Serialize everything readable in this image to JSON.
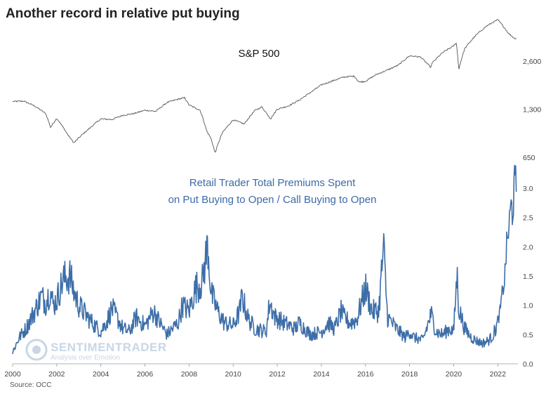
{
  "title": "Another record in relative put buying",
  "source": "Source: OCC",
  "watermark": {
    "brand": "SENTIMENTRADER",
    "tagline": "Analysis over Emotion"
  },
  "colors": {
    "sp500_line": "#555555",
    "ratio_line": "#3d6ea8",
    "watermark": "#c9d6e6"
  },
  "chart_data": [
    {
      "type": "line",
      "panel": "top",
      "label": "S&P 500",
      "y_scale": "log",
      "y_ticks": [
        {
          "value": 650,
          "label": "650"
        },
        {
          "value": 1300,
          "label": "1,300"
        },
        {
          "value": 2600,
          "label": "2,600"
        }
      ],
      "ylim": [
        600,
        5000
      ],
      "xlim": [
        2000.0,
        2022.85
      ],
      "x": [
        2000.0,
        2000.5,
        2001.0,
        2001.5,
        2001.72,
        2002.0,
        2002.5,
        2002.78,
        2003.0,
        2003.5,
        2004.0,
        2004.5,
        2005.0,
        2005.5,
        2006.0,
        2006.5,
        2007.0,
        2007.5,
        2007.8,
        2008.0,
        2008.5,
        2008.8,
        2009.0,
        2009.18,
        2009.5,
        2010.0,
        2010.5,
        2011.0,
        2011.3,
        2011.7,
        2012.0,
        2012.5,
        2013.0,
        2013.5,
        2014.0,
        2014.5,
        2015.0,
        2015.5,
        2015.7,
        2016.0,
        2016.5,
        2017.0,
        2017.5,
        2018.0,
        2018.5,
        2018.98,
        2019.0,
        2019.5,
        2020.0,
        2020.12,
        2020.23,
        2020.5,
        2021.0,
        2021.5,
        2022.0,
        2022.5,
        2022.75
      ],
      "y": [
        1450,
        1460,
        1360,
        1220,
        1000,
        1140,
        900,
        800,
        860,
        990,
        1130,
        1120,
        1190,
        1220,
        1280,
        1260,
        1430,
        1500,
        1530,
        1380,
        1280,
        950,
        850,
        690,
        920,
        1115,
        1050,
        1280,
        1340,
        1130,
        1300,
        1360,
        1480,
        1650,
        1840,
        1950,
        2060,
        2090,
        1920,
        1940,
        2140,
        2280,
        2450,
        2800,
        2750,
        2350,
        2500,
        2930,
        3230,
        3380,
        2300,
        3100,
        3750,
        4300,
        4700,
        3850,
        3600
      ]
    },
    {
      "type": "line",
      "panel": "bottom",
      "label": "Retail Trader Total Premiums Spent on Put Buying to Open / Call Buying to Open",
      "label_lines": [
        "Retail Trader Total Premiums Spent",
        "on Put Buying to Open / Call Buying to Open"
      ],
      "y_ticks": [
        {
          "value": 0.0,
          "label": "0.0"
        },
        {
          "value": 0.5,
          "label": "0.5"
        },
        {
          "value": 1.0,
          "label": "1.0"
        },
        {
          "value": 1.5,
          "label": "1.5"
        },
        {
          "value": 2.0,
          "label": "2.0"
        },
        {
          "value": 2.5,
          "label": "2.5"
        },
        {
          "value": 3.0,
          "label": "3.0"
        }
      ],
      "ylim": [
        0.0,
        3.0
      ],
      "xlim": [
        2000.0,
        2022.85
      ],
      "x": [
        2000.0,
        2000.3,
        2000.6,
        2001.0,
        2001.3,
        2001.5,
        2001.7,
        2001.85,
        2002.0,
        2002.3,
        2002.6,
        2002.8,
        2003.0,
        2003.5,
        2004.0,
        2004.3,
        2004.5,
        2005.0,
        2005.3,
        2005.6,
        2006.0,
        2006.4,
        2006.6,
        2007.0,
        2007.5,
        2007.7,
        2008.0,
        2008.3,
        2008.6,
        2008.85,
        2009.0,
        2009.3,
        2009.6,
        2010.0,
        2010.3,
        2010.4,
        2010.7,
        2011.0,
        2011.5,
        2011.65,
        2011.9,
        2012.3,
        2012.8,
        2013.0,
        2013.5,
        2014.0,
        2014.3,
        2014.6,
        2014.9,
        2015.0,
        2015.3,
        2015.6,
        2015.75,
        2016.0,
        2016.3,
        2016.6,
        2016.82,
        2017.0,
        2017.4,
        2017.8,
        2018.0,
        2018.2,
        2018.6,
        2018.98,
        2019.2,
        2019.5,
        2019.8,
        2020.0,
        2020.15,
        2020.23,
        2020.5,
        2020.8,
        2021.0,
        2021.3,
        2021.6,
        2021.8,
        2022.0,
        2022.1,
        2022.2,
        2022.3,
        2022.4,
        2022.5,
        2022.6,
        2022.68,
        2022.75
      ],
      "y": [
        0.2,
        0.45,
        0.6,
        0.9,
        1.15,
        1.05,
        1.25,
        1.0,
        1.1,
        1.45,
        1.5,
        1.2,
        1.0,
        0.75,
        0.55,
        0.75,
        0.95,
        0.6,
        0.55,
        0.8,
        0.65,
        0.9,
        0.75,
        0.5,
        0.7,
        1.0,
        0.9,
        1.3,
        1.4,
        2.05,
        1.2,
        0.9,
        0.7,
        0.65,
        0.9,
        1.15,
        0.75,
        0.6,
        0.55,
        1.05,
        0.8,
        0.7,
        0.6,
        0.7,
        0.5,
        0.55,
        0.7,
        0.6,
        0.9,
        0.8,
        0.7,
        0.75,
        0.95,
        1.3,
        0.9,
        0.9,
        2.0,
        0.8,
        0.6,
        0.45,
        0.55,
        0.45,
        0.4,
        0.85,
        0.55,
        0.5,
        0.6,
        0.55,
        1.55,
        0.95,
        0.6,
        0.45,
        0.4,
        0.35,
        0.4,
        0.5,
        0.7,
        0.9,
        1.2,
        1.4,
        2.0,
        2.3,
        2.7,
        2.6,
        3.05
      ]
    }
  ],
  "x_axis": {
    "ticks": [
      {
        "value": 2000,
        "label": "2000"
      },
      {
        "value": 2002,
        "label": "2002"
      },
      {
        "value": 2004,
        "label": "2004"
      },
      {
        "value": 2006,
        "label": "2006"
      },
      {
        "value": 2008,
        "label": "2008"
      },
      {
        "value": 2010,
        "label": "2010"
      },
      {
        "value": 2012,
        "label": "2012"
      },
      {
        "value": 2014,
        "label": "2014"
      },
      {
        "value": 2016,
        "label": "2016"
      },
      {
        "value": 2018,
        "label": "2018"
      },
      {
        "value": 2020,
        "label": "2020"
      },
      {
        "value": 2022,
        "label": "2022"
      }
    ]
  }
}
